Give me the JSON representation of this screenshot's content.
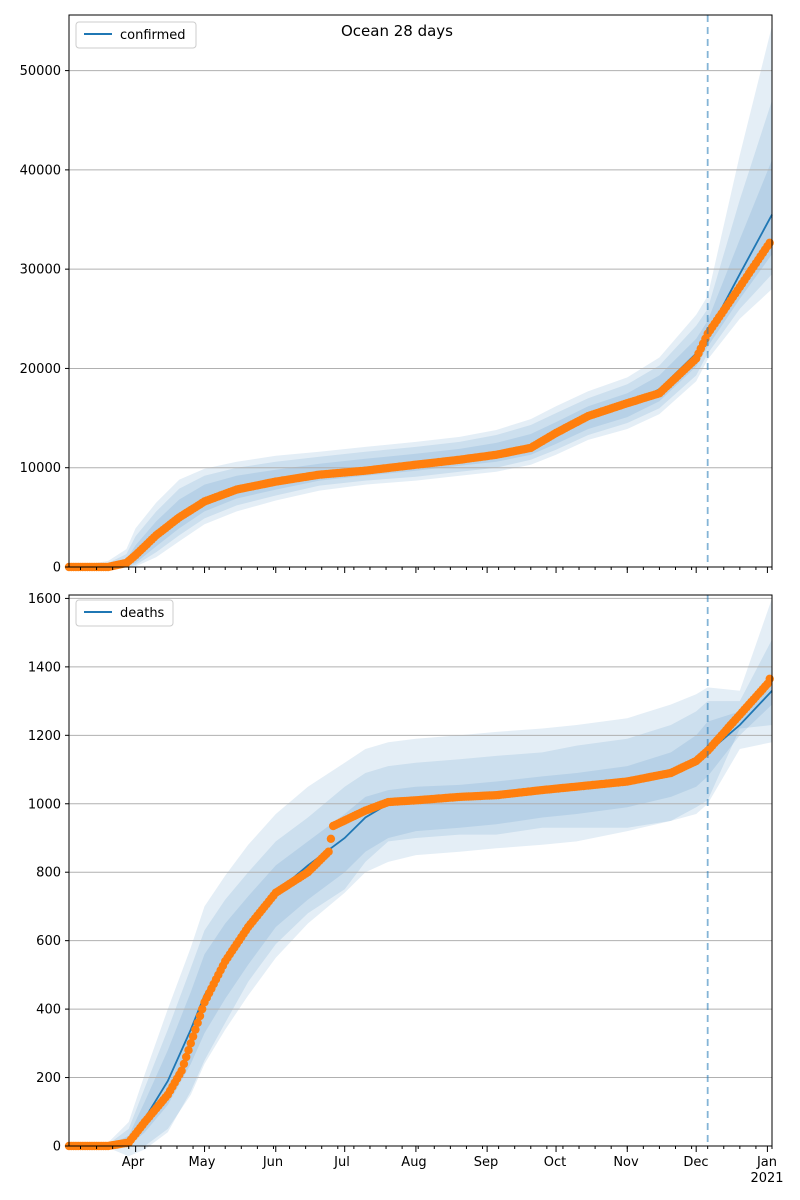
{
  "figure": {
    "title": "Ocean 28 days"
  },
  "x_tick_labels": [
    "Apr",
    "May",
    "Jun",
    "Jul",
    "Aug",
    "Sep",
    "Oct",
    "Nov",
    "Dec",
    "Jan",
    "2021"
  ],
  "colors": {
    "model": "#1f77b4",
    "observed": "#ff7f0e",
    "band": "#1f77b4",
    "grid": "#b0b0b0"
  },
  "chart_data": [
    {
      "type": "line",
      "title": "Ocean 28 days",
      "legend": {
        "entries": [
          "confirmed"
        ],
        "placement": "top-left"
      },
      "xlim": [
        "2020-03-03",
        "2021-01-03"
      ],
      "ylim": [
        0,
        55600
      ],
      "grid": "horizontal",
      "y_ticks": [
        0,
        10000,
        20000,
        30000,
        40000,
        50000
      ],
      "y_tick_labels": [
        "0",
        "10000",
        "20000",
        "30000",
        "40000",
        "50000"
      ],
      "forecast_start": "2020-12-06",
      "series": [
        {
          "name": "confirmed",
          "style": "line",
          "x": [
            "2020-03-03",
            "2020-03-20",
            "2020-03-28",
            "2020-04-01",
            "2020-04-10",
            "2020-04-20",
            "2020-05-01",
            "2020-05-15",
            "2020-06-01",
            "2020-06-20",
            "2020-07-10",
            "2020-08-01",
            "2020-08-20",
            "2020-09-05",
            "2020-09-20",
            "2020-10-01",
            "2020-10-15",
            "2020-11-01",
            "2020-11-15",
            "2020-12-01",
            "2020-12-06",
            "2020-12-20",
            "2021-01-03"
          ],
          "values": [
            0,
            0,
            400,
            1200,
            3200,
            5200,
            6900,
            8000,
            8800,
            9500,
            10000,
            10500,
            11000,
            11500,
            12300,
            13500,
            15000,
            16300,
            17900,
            21500,
            23400,
            29500,
            35500
          ]
        },
        {
          "name": "observed",
          "style": "points",
          "x": [
            "2020-03-03",
            "2020-03-20",
            "2020-03-28",
            "2020-04-01",
            "2020-04-10",
            "2020-04-20",
            "2020-05-01",
            "2020-05-15",
            "2020-06-01",
            "2020-06-20",
            "2020-07-10",
            "2020-08-01",
            "2020-08-20",
            "2020-09-05",
            "2020-09-20",
            "2020-10-01",
            "2020-10-15",
            "2020-11-01",
            "2020-11-15",
            "2020-12-01",
            "2020-12-06",
            "2020-12-20",
            "2021-01-03"
          ],
          "values": [
            0,
            0,
            400,
            1200,
            3200,
            5000,
            6600,
            7800,
            8600,
            9300,
            9700,
            10300,
            10800,
            11300,
            12000,
            13500,
            15200,
            16500,
            17500,
            21000,
            23500,
            28200,
            33000
          ]
        }
      ],
      "bands": [
        {
          "upper": [
            0,
            200,
            800,
            2200,
            4600,
            6800,
            8300,
            9200,
            9800,
            10400,
            10900,
            11400,
            11900,
            12500,
            13400,
            14600,
            16200,
            17500,
            19300,
            23000,
            24800,
            33000,
            41000
          ],
          "lower": [
            0,
            0,
            100,
            400,
            2100,
            3900,
            5600,
            6900,
            7800,
            8700,
            9200,
            9700,
            10200,
            10600,
            11300,
            12400,
            13900,
            15100,
            16700,
            20200,
            22200,
            27000,
            31500
          ]
        },
        {
          "upper": [
            0,
            400,
            1300,
            3100,
            5600,
            7900,
            9200,
            10000,
            10600,
            11100,
            11600,
            12100,
            12600,
            13300,
            14300,
            15500,
            17000,
            18400,
            20300,
            24300,
            26000,
            37000,
            47000
          ],
          "lower": [
            0,
            0,
            0,
            200,
            1500,
            3200,
            4900,
            6200,
            7200,
            8200,
            8700,
            9100,
            9600,
            10000,
            10800,
            11800,
            13300,
            14500,
            16000,
            19300,
            21500,
            26000,
            29500
          ]
        },
        {
          "upper": [
            0,
            600,
            1800,
            3900,
            6500,
            8800,
            9900,
            10600,
            11200,
            11600,
            12100,
            12600,
            13100,
            13800,
            14900,
            16200,
            17700,
            19100,
            21100,
            25400,
            27300,
            41500,
            54500
          ],
          "lower": [
            0,
            0,
            0,
            50,
            1000,
            2600,
            4300,
            5600,
            6700,
            7700,
            8300,
            8700,
            9200,
            9600,
            10300,
            11300,
            12800,
            13900,
            15400,
            18700,
            20900,
            25000,
            28000
          ]
        }
      ]
    },
    {
      "type": "line",
      "legend": {
        "entries": [
          "deaths"
        ],
        "placement": "top-left"
      },
      "xlim": [
        "2020-03-03",
        "2021-01-03"
      ],
      "ylim": [
        0,
        1610
      ],
      "grid": "horizontal",
      "y_ticks": [
        0,
        200,
        400,
        600,
        800,
        1000,
        1200,
        1400,
        1600
      ],
      "y_tick_labels": [
        "0",
        "200",
        "400",
        "600",
        "800",
        "1000",
        "1200",
        "1400",
        "1600"
      ],
      "forecast_start": "2020-12-06",
      "series": [
        {
          "name": "deaths",
          "style": "line",
          "x": [
            "2020-03-03",
            "2020-03-20",
            "2020-03-29",
            "2020-04-05",
            "2020-04-15",
            "2020-04-25",
            "2020-05-01",
            "2020-05-10",
            "2020-05-20",
            "2020-06-01",
            "2020-06-15",
            "2020-07-01",
            "2020-07-10",
            "2020-07-20",
            "2020-08-01",
            "2020-08-20",
            "2020-09-05",
            "2020-09-25",
            "2020-10-10",
            "2020-11-01",
            "2020-11-20",
            "2020-12-01",
            "2020-12-06",
            "2020-12-20",
            "2021-01-03"
          ],
          "values": [
            0,
            0,
            10,
            80,
            190,
            340,
            440,
            540,
            640,
            740,
            820,
            900,
            960,
            1000,
            1010,
            1020,
            1025,
            1040,
            1050,
            1060,
            1090,
            1120,
            1150,
            1230,
            1330
          ]
        },
        {
          "name": "observed",
          "style": "points",
          "x": [
            "2020-03-03",
            "2020-03-20",
            "2020-03-29",
            "2020-04-05",
            "2020-04-15",
            "2020-04-21",
            "2020-05-01",
            "2020-05-10",
            "2020-05-20",
            "2020-06-01",
            "2020-06-15",
            "2020-06-24",
            "2020-06-26",
            "2020-07-10",
            "2020-07-20",
            "2020-08-01",
            "2020-08-20",
            "2020-09-05",
            "2020-09-25",
            "2020-10-10",
            "2020-11-01",
            "2020-11-20",
            "2020-12-01",
            "2020-12-06",
            "2020-12-20",
            "2021-01-01",
            "2021-01-03"
          ],
          "values": [
            0,
            0,
            10,
            70,
            150,
            220,
            420,
            540,
            640,
            740,
            800,
            860,
            935,
            980,
            1005,
            1010,
            1020,
            1025,
            1040,
            1050,
            1065,
            1090,
            1125,
            1155,
            1260,
            1350,
            1380
          ]
        }
      ],
      "bands": [
        {
          "upper": [
            0,
            0,
            30,
            130,
            280,
            450,
            560,
            650,
            730,
            820,
            890,
            970,
            1020,
            1040,
            1050,
            1055,
            1065,
            1080,
            1090,
            1110,
            1150,
            1200,
            1240,
            1270,
            1380
          ],
          "lower": [
            0,
            0,
            0,
            40,
            120,
            240,
            330,
            430,
            530,
            640,
            720,
            800,
            860,
            900,
            920,
            930,
            940,
            960,
            970,
            990,
            1020,
            1050,
            1080,
            1200,
            1290
          ]
        },
        {
          "upper": [
            0,
            5,
            50,
            170,
            340,
            520,
            630,
            720,
            800,
            890,
            960,
            1050,
            1090,
            1110,
            1120,
            1130,
            1140,
            1150,
            1170,
            1190,
            1230,
            1270,
            1300,
            1300,
            1480
          ]
        },
        {
          "upper": [
            0,
            10,
            70,
            210,
            400,
            580,
            700,
            790,
            880,
            970,
            1050,
            1120,
            1160,
            1180,
            1190,
            1200,
            1210,
            1220,
            1230,
            1250,
            1290,
            1320,
            1340,
            1330,
            1600
          ],
          "lower": [
            0,
            0,
            0,
            0,
            50,
            150,
            240,
            340,
            440,
            550,
            650,
            740,
            800,
            830,
            850,
            860,
            870,
            880,
            890,
            920,
            950,
            990,
            1010,
            1220,
            1230
          ]
        }
      ]
    }
  ]
}
